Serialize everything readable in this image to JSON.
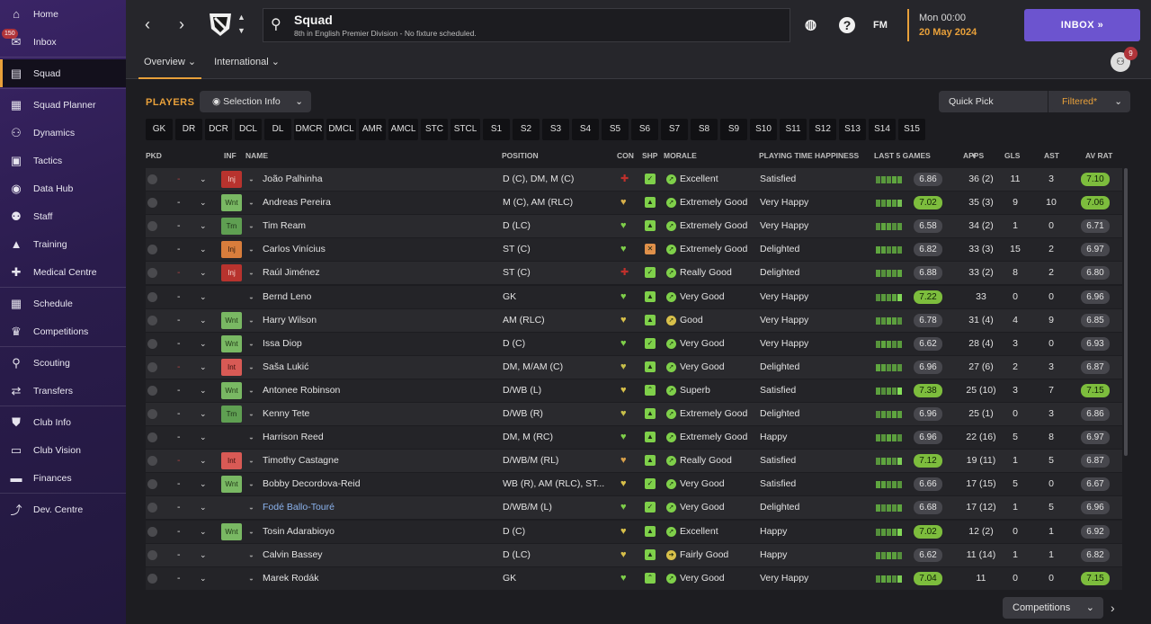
{
  "sidebar": {
    "items": [
      {
        "label": "Home",
        "icon": "home-icon",
        "glyph": "⌂"
      },
      {
        "label": "Inbox",
        "icon": "inbox-icon",
        "glyph": "✉",
        "badge": "150"
      },
      {
        "label": "Squad",
        "icon": "shirt-icon",
        "glyph": "▤",
        "active": true
      },
      {
        "label": "Squad Planner",
        "icon": "clipboard-icon",
        "glyph": "▦"
      },
      {
        "label": "Dynamics",
        "icon": "people-icon",
        "glyph": "⚇"
      },
      {
        "label": "Tactics",
        "icon": "tactics-icon",
        "glyph": "▣"
      },
      {
        "label": "Data Hub",
        "icon": "data-hub-icon",
        "glyph": "◉"
      },
      {
        "label": "Staff",
        "icon": "staff-icon",
        "glyph": "⚉"
      },
      {
        "label": "Training",
        "icon": "training-icon",
        "glyph": "▲"
      },
      {
        "label": "Medical Centre",
        "icon": "medical-icon",
        "glyph": "✚"
      },
      {
        "label": "Schedule",
        "icon": "calendar-icon",
        "glyph": "▦"
      },
      {
        "label": "Competitions",
        "icon": "trophy-icon",
        "glyph": "♛"
      },
      {
        "label": "Scouting",
        "icon": "search-icon",
        "glyph": "⚲"
      },
      {
        "label": "Transfers",
        "icon": "transfers-icon",
        "glyph": "⇄"
      },
      {
        "label": "Club Info",
        "icon": "shield-icon",
        "glyph": "⛊"
      },
      {
        "label": "Club Vision",
        "icon": "briefcase-icon",
        "glyph": "▭"
      },
      {
        "label": "Finances",
        "icon": "money-icon",
        "glyph": "▬"
      },
      {
        "label": "Dev. Centre",
        "icon": "dev-centre-icon",
        "glyph": "⤴"
      }
    ]
  },
  "header": {
    "title": "Squad",
    "subtitle": "8th in English Premier Division - No fixture scheduled.",
    "day_time": "Mon 00:00",
    "date": "20 May 2024",
    "inbox_label": "INBOX",
    "fm_label": "FM",
    "help_label": "?",
    "people_badge": "9"
  },
  "subtabs": [
    {
      "label": "Overview ⌄",
      "active": true
    },
    {
      "label": "International ⌄",
      "active": false
    }
  ],
  "toolbar": {
    "players_label": "PLAYERS",
    "selection_info": "Selection Info",
    "quick_pick": "Quick Pick",
    "filtered": "Filtered*"
  },
  "position_filters": [
    "GK",
    "DR",
    "DCR",
    "DCL",
    "DL",
    "DMCR",
    "DMCL",
    "AMR",
    "AMCL",
    "STC",
    "STCL",
    "S1",
    "S2",
    "S3",
    "S4",
    "S5",
    "S6",
    "S7",
    "S8",
    "S9",
    "S10",
    "S11",
    "S12",
    "S13",
    "S14",
    "S15"
  ],
  "columns": {
    "pkd": "PKD",
    "inf": "INF",
    "name": "NAME",
    "position": "POSITION",
    "con": "CON",
    "shp": "SHP",
    "morale": "MORALE",
    "pth": "PLAYING TIME HAPPINESS",
    "last5": "LAST 5 GAMES",
    "apps": "APPS",
    "gls": "GLS",
    "ast": "AST",
    "avrat": "AV RAT"
  },
  "players": [
    {
      "dash": "-",
      "dash_red": true,
      "inf": "Inj",
      "inf_type": "injr",
      "name": "João Palhinha",
      "position": "D (C), DM, M (C)",
      "con": "✚",
      "con_color": "#c0302c",
      "shp": "✓",
      "shp_color": "#7fd04a",
      "morale_icon": "➚",
      "morale_color": "#7fd04a",
      "morale": "Excellent",
      "pth": "Satisfied",
      "l5": "6.86",
      "l5_green": false,
      "apps": "36 (2)",
      "gls": "11",
      "ast": "3",
      "avrat": "7.10",
      "av_green": true
    },
    {
      "dash": "-",
      "dash_red": false,
      "inf": "Wnt",
      "inf_type": "wnt",
      "name": "Andreas Pereira",
      "position": "M (C), AM (RLC)",
      "con": "♥",
      "con_color": "#d8b04a",
      "shp": "▲",
      "shp_color": "#7fd04a",
      "morale_icon": "➚",
      "morale_color": "#7fd04a",
      "morale": "Extremely Good",
      "pth": "Very Happy",
      "l5": "7.02",
      "l5_green": true,
      "apps": "35 (3)",
      "gls": "9",
      "ast": "10",
      "avrat": "7.06",
      "av_green": true
    },
    {
      "dash": "-",
      "dash_red": false,
      "inf": "Trn",
      "inf_type": "trn",
      "name": "Tim Ream",
      "position": "D (LC)",
      "con": "♥",
      "con_color": "#7fd04a",
      "shp": "▲",
      "shp_color": "#7fd04a",
      "morale_icon": "➚",
      "morale_color": "#7fd04a",
      "morale": "Extremely Good",
      "pth": "Very Happy",
      "l5": "6.58",
      "l5_green": false,
      "apps": "34 (2)",
      "gls": "1",
      "ast": "0",
      "avrat": "6.71",
      "av_green": false
    },
    {
      "dash": "-",
      "dash_red": false,
      "inf": "Inj",
      "inf_type": "inj",
      "name": "Carlos Vinícius",
      "position": "ST (C)",
      "con": "♥",
      "con_color": "#7fd04a",
      "shp": "✕",
      "shp_color": "#e0904a",
      "morale_icon": "➚",
      "morale_color": "#7fd04a",
      "morale": "Extremely Good",
      "pth": "Delighted",
      "l5": "6.82",
      "l5_green": false,
      "apps": "33 (3)",
      "gls": "15",
      "ast": "2",
      "avrat": "6.97",
      "av_green": false
    },
    {
      "dash": "-",
      "dash_red": true,
      "inf": "Inj",
      "inf_type": "injr",
      "name": "Raúl Jiménez",
      "position": "ST (C)",
      "con": "✚",
      "con_color": "#c0302c",
      "shp": "✓",
      "shp_color": "#7fd04a",
      "morale_icon": "➚",
      "morale_color": "#7fd04a",
      "morale": "Really Good",
      "pth": "Delighted",
      "l5": "6.88",
      "l5_green": false,
      "apps": "33 (2)",
      "gls": "8",
      "ast": "2",
      "avrat": "6.80",
      "av_green": false
    },
    {
      "dash": "-",
      "dash_red": false,
      "inf": "",
      "inf_type": "",
      "name": "Bernd Leno",
      "position": "GK",
      "con": "♥",
      "con_color": "#7fd04a",
      "shp": "▲",
      "shp_color": "#7fd04a",
      "morale_icon": "➚",
      "morale_color": "#7fd04a",
      "morale": "Very Good",
      "pth": "Very Happy",
      "l5": "7.22",
      "l5_green": true,
      "apps": "33",
      "gls": "0",
      "ast": "0",
      "avrat": "6.96",
      "av_green": false
    },
    {
      "dash": "-",
      "dash_red": false,
      "inf": "Wnt",
      "inf_type": "wnt",
      "name": "Harry Wilson",
      "position": "AM (RLC)",
      "con": "♥",
      "con_color": "#d8c04a",
      "shp": "▲",
      "shp_color": "#7fd04a",
      "morale_icon": "➚",
      "morale_color": "#d8c04a",
      "morale": "Good",
      "pth": "Very Happy",
      "l5": "6.78",
      "l5_green": false,
      "apps": "31 (4)",
      "gls": "4",
      "ast": "9",
      "avrat": "6.85",
      "av_green": false
    },
    {
      "dash": "-",
      "dash_red": false,
      "inf": "Wnt",
      "inf_type": "wnt",
      "name": "Issa Diop",
      "position": "D (C)",
      "con": "♥",
      "con_color": "#7fd04a",
      "shp": "✓",
      "shp_color": "#7fd04a",
      "morale_icon": "➚",
      "morale_color": "#7fd04a",
      "morale": "Very Good",
      "pth": "Very Happy",
      "l5": "6.62",
      "l5_green": false,
      "apps": "28 (4)",
      "gls": "3",
      "ast": "0",
      "avrat": "6.93",
      "av_green": false
    },
    {
      "dash": "-",
      "dash_red": true,
      "inf": "Int",
      "inf_type": "int",
      "name": "Saša Lukić",
      "position": "DM, M/AM (C)",
      "con": "♥",
      "con_color": "#c8c04a",
      "shp": "▲",
      "shp_color": "#7fd04a",
      "morale_icon": "➚",
      "morale_color": "#7fd04a",
      "morale": "Very Good",
      "pth": "Delighted",
      "l5": "6.96",
      "l5_green": false,
      "apps": "27 (6)",
      "gls": "2",
      "ast": "3",
      "avrat": "6.87",
      "av_green": false
    },
    {
      "dash": "-",
      "dash_red": false,
      "inf": "Wnt",
      "inf_type": "wnt",
      "name": "Antonee Robinson",
      "position": "D/WB (L)",
      "con": "♥",
      "con_color": "#d8c04a",
      "shp": "⌃",
      "shp_color": "#7fd04a",
      "morale_icon": "➚",
      "morale_color": "#7fd04a",
      "morale": "Superb",
      "pth": "Satisfied",
      "l5": "7.38",
      "l5_green": true,
      "apps": "25 (10)",
      "gls": "3",
      "ast": "7",
      "avrat": "7.15",
      "av_green": true
    },
    {
      "dash": "-",
      "dash_red": false,
      "inf": "Trn",
      "inf_type": "trn",
      "name": "Kenny Tete",
      "position": "D/WB (R)",
      "con": "♥",
      "con_color": "#c8c04a",
      "shp": "▲",
      "shp_color": "#7fd04a",
      "morale_icon": "➚",
      "morale_color": "#7fd04a",
      "morale": "Extremely Good",
      "pth": "Delighted",
      "l5": "6.96",
      "l5_green": false,
      "apps": "25 (1)",
      "gls": "0",
      "ast": "3",
      "avrat": "6.86",
      "av_green": false
    },
    {
      "dash": "-",
      "dash_red": false,
      "inf": "",
      "inf_type": "",
      "name": "Harrison Reed",
      "position": "DM, M (RC)",
      "con": "♥",
      "con_color": "#7fd04a",
      "shp": "▲",
      "shp_color": "#7fd04a",
      "morale_icon": "➚",
      "morale_color": "#7fd04a",
      "morale": "Extremely Good",
      "pth": "Happy",
      "l5": "6.96",
      "l5_green": false,
      "apps": "22 (16)",
      "gls": "5",
      "ast": "8",
      "avrat": "6.97",
      "av_green": false
    },
    {
      "dash": "-",
      "dash_red": true,
      "inf": "Int",
      "inf_type": "int",
      "name": "Timothy Castagne",
      "position": "D/WB/M (RL)",
      "con": "♥",
      "con_color": "#d8a04a",
      "shp": "▲",
      "shp_color": "#7fd04a",
      "morale_icon": "➚",
      "morale_color": "#7fd04a",
      "morale": "Really Good",
      "pth": "Satisfied",
      "l5": "7.12",
      "l5_green": true,
      "apps": "19 (11)",
      "gls": "1",
      "ast": "5",
      "avrat": "6.87",
      "av_green": false
    },
    {
      "dash": "-",
      "dash_red": false,
      "inf": "Wnt",
      "inf_type": "wnt",
      "name": "Bobby Decordova-Reid",
      "position": "WB (R), AM (RLC), ST...",
      "con": "♥",
      "con_color": "#d8c04a",
      "shp": "✓",
      "shp_color": "#7fd04a",
      "morale_icon": "➚",
      "morale_color": "#7fd04a",
      "morale": "Very Good",
      "pth": "Satisfied",
      "l5": "6.66",
      "l5_green": false,
      "apps": "17 (15)",
      "gls": "5",
      "ast": "0",
      "avrat": "6.67",
      "av_green": false
    },
    {
      "dash": "-",
      "dash_red": false,
      "inf": "",
      "inf_type": "",
      "name": "Fodé Ballo-Touré",
      "name_blue": true,
      "position": "D/WB/M (L)",
      "con": "♥",
      "con_color": "#7fd04a",
      "shp": "✓",
      "shp_color": "#7fd04a",
      "morale_icon": "➚",
      "morale_color": "#7fd04a",
      "morale": "Very Good",
      "pth": "Delighted",
      "l5": "6.68",
      "l5_green": false,
      "apps": "17 (12)",
      "gls": "1",
      "ast": "5",
      "avrat": "6.96",
      "av_green": false
    },
    {
      "dash": "-",
      "dash_red": false,
      "inf": "Wnt",
      "inf_type": "wnt",
      "name": "Tosin Adarabioyo",
      "position": "D (C)",
      "con": "♥",
      "con_color": "#d8c04a",
      "shp": "▲",
      "shp_color": "#7fd04a",
      "morale_icon": "➚",
      "morale_color": "#7fd04a",
      "morale": "Excellent",
      "pth": "Happy",
      "l5": "7.02",
      "l5_green": true,
      "apps": "12 (2)",
      "gls": "0",
      "ast": "1",
      "avrat": "6.92",
      "av_green": false
    },
    {
      "dash": "-",
      "dash_red": false,
      "inf": "",
      "inf_type": "",
      "name": "Calvin Bassey",
      "position": "D (LC)",
      "con": "♥",
      "con_color": "#d8c04a",
      "shp": "▲",
      "shp_color": "#7fd04a",
      "morale_icon": "➔",
      "morale_color": "#d8c04a",
      "morale": "Fairly Good",
      "pth": "Happy",
      "l5": "6.62",
      "l5_green": false,
      "apps": "11 (14)",
      "gls": "1",
      "ast": "1",
      "avrat": "6.82",
      "av_green": false
    },
    {
      "dash": "-",
      "dash_red": false,
      "inf": "",
      "inf_type": "",
      "name": "Marek Rodák",
      "position": "GK",
      "con": "♥",
      "con_color": "#7fd04a",
      "shp": "⌃",
      "shp_color": "#7fd04a",
      "morale_icon": "➚",
      "morale_color": "#7fd04a",
      "morale": "Very Good",
      "pth": "Very Happy",
      "l5": "7.04",
      "l5_green": true,
      "apps": "11",
      "gls": "0",
      "ast": "0",
      "avrat": "7.15",
      "av_green": true
    }
  ],
  "footer": {
    "competitions": "Competitions"
  }
}
